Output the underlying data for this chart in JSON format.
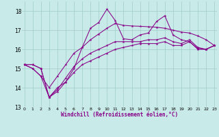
{
  "xlabel": "Windchill (Refroidissement éolien,°C)",
  "background_color": "#c8eae8",
  "line_color": "#880088",
  "x_values": [
    0,
    1,
    2,
    3,
    4,
    5,
    6,
    7,
    8,
    9,
    10,
    11,
    12,
    13,
    14,
    15,
    16,
    17,
    18,
    19,
    20,
    21,
    22,
    23
  ],
  "line1_y": [
    15.2,
    15.2,
    15.0,
    13.5,
    13.8,
    14.3,
    14.8,
    15.2,
    15.4,
    15.6,
    15.8,
    16.0,
    16.1,
    16.2,
    16.3,
    16.3,
    16.3,
    16.4,
    16.2,
    16.2,
    16.4,
    16.0,
    16.0,
    16.2
  ],
  "line2_y": [
    15.2,
    15.2,
    15.0,
    13.5,
    13.9,
    14.5,
    15.1,
    15.5,
    15.8,
    16.0,
    16.2,
    16.4,
    16.4,
    16.4,
    16.4,
    16.5,
    16.5,
    16.6,
    16.4,
    16.3,
    16.5,
    16.1,
    16.0,
    16.2
  ],
  "line3_y": [
    15.2,
    15.0,
    14.6,
    14.0,
    14.6,
    15.2,
    15.8,
    16.1,
    16.5,
    16.8,
    17.1,
    17.35,
    17.25,
    17.22,
    17.2,
    17.18,
    17.15,
    17.1,
    17.0,
    16.9,
    16.85,
    16.7,
    16.5,
    16.2
  ],
  "line4_y": [
    15.2,
    15.0,
    14.6,
    13.5,
    14.0,
    14.3,
    15.0,
    16.1,
    17.1,
    17.4,
    18.1,
    17.5,
    16.55,
    16.5,
    16.75,
    16.85,
    17.45,
    17.75,
    16.75,
    16.5,
    16.4,
    16.05,
    16.0,
    16.2
  ],
  "ylim": [
    13.0,
    18.5
  ],
  "xlim": [
    -0.3,
    23.3
  ],
  "yticks": [
    13,
    14,
    15,
    16,
    17,
    18
  ],
  "xticks": [
    0,
    1,
    2,
    3,
    4,
    5,
    6,
    7,
    8,
    9,
    10,
    11,
    12,
    13,
    14,
    15,
    16,
    17,
    18,
    19,
    20,
    21,
    22,
    23
  ]
}
